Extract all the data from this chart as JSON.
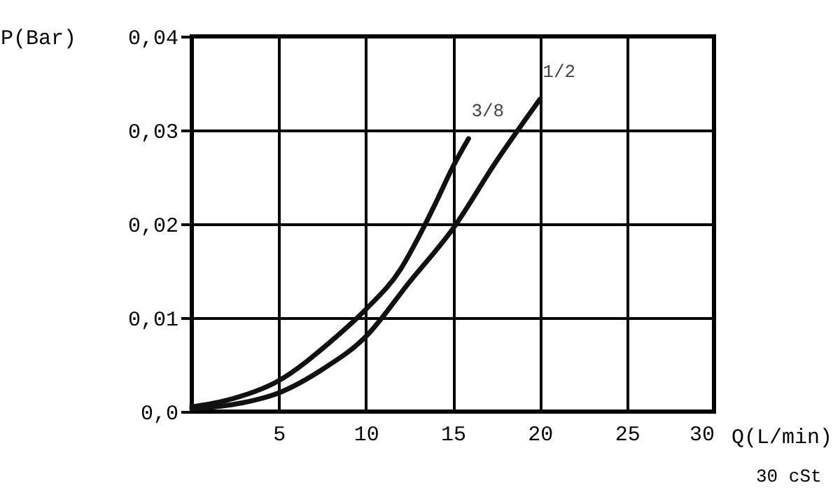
{
  "chart_data": {
    "type": "line",
    "xlabel": "Q(L/min)",
    "ylabel": "P(Bar)",
    "annotations": [
      "30 cSt"
    ],
    "xlim": [
      0,
      30
    ],
    "xticks": [
      5,
      10,
      15,
      20,
      25,
      30
    ],
    "ylim": [
      0,
      0.04
    ],
    "yticks": [
      {
        "value": 0,
        "label": "0,0"
      },
      {
        "value": 0.01,
        "label": "0,01"
      },
      {
        "value": 0.02,
        "label": "0,02"
      },
      {
        "value": 0.03,
        "label": "0,03"
      },
      {
        "value": 0.04,
        "label": "0,04"
      }
    ],
    "grid": true,
    "legend": false,
    "marker": "none",
    "line_style": "solid",
    "series": [
      {
        "name": "3/8",
        "color": "#111111",
        "x": [
          0,
          2,
          5,
          8,
          10,
          12,
          13,
          14,
          15,
          15.9
        ],
        "values": [
          0.0005,
          0.0012,
          0.0033,
          0.0075,
          0.0109,
          0.0152,
          0.0185,
          0.0222,
          0.0261,
          0.0291
        ]
      },
      {
        "name": "1/2",
        "color": "#111111",
        "x": [
          0,
          2.5,
          5,
          7.5,
          10,
          12.5,
          15,
          17.5,
          20
        ],
        "values": [
          0.0003,
          0.0008,
          0.002,
          0.0045,
          0.008,
          0.0138,
          0.0195,
          0.0267,
          0.0333
        ]
      }
    ]
  }
}
